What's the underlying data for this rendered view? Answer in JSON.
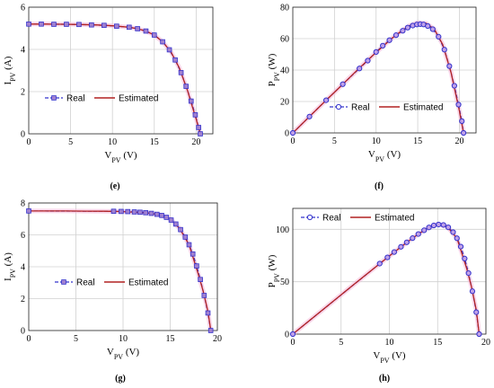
{
  "chart_data": [
    {
      "type": "line",
      "panel": "(e)",
      "xlabel": "V_PV (V)",
      "ylabel": "I_PV (A)",
      "xlim": [
        0,
        22
      ],
      "ylim": [
        0,
        6
      ],
      "xticks": [
        0,
        5,
        10,
        15,
        20
      ],
      "yticks": [
        0,
        2,
        4,
        6
      ],
      "grid": true,
      "legend": "lower-left",
      "marker": "square",
      "series": [
        {
          "name": "Real",
          "color": "#3333cc",
          "style": "dashed-marker",
          "x": [
            0,
            1.5,
            3,
            4.5,
            6,
            7.5,
            9,
            10.5,
            12,
            13,
            14,
            15,
            16,
            16.8,
            17.5,
            18.2,
            18.8,
            19.4,
            19.9,
            20.3,
            20.5
          ],
          "y": [
            5.2,
            5.2,
            5.19,
            5.19,
            5.18,
            5.16,
            5.14,
            5.1,
            5.05,
            4.98,
            4.87,
            4.68,
            4.36,
            3.98,
            3.5,
            2.9,
            2.25,
            1.55,
            0.9,
            0.3,
            0
          ]
        },
        {
          "name": "Estimated",
          "color": "#b22222",
          "style": "solid",
          "x": [
            0,
            2,
            4,
            6,
            8,
            10,
            12,
            13,
            14,
            15,
            16,
            17,
            18,
            19,
            19.5,
            20,
            20.5
          ],
          "y": [
            5.2,
            5.2,
            5.19,
            5.18,
            5.16,
            5.12,
            5.05,
            4.98,
            4.87,
            4.68,
            4.36,
            3.88,
            3.12,
            2.02,
            1.35,
            0.7,
            0
          ]
        }
      ]
    },
    {
      "type": "line",
      "panel": "(f)",
      "xlabel": "V_PV (V)",
      "ylabel": "P_PV (W)",
      "xlim": [
        0,
        22
      ],
      "ylim": [
        0,
        80
      ],
      "xticks": [
        0,
        5,
        10,
        15,
        20
      ],
      "yticks": [
        0,
        20,
        40,
        60,
        80
      ],
      "grid": true,
      "legend": "center-left",
      "marker": "circle",
      "series": [
        {
          "name": "Real",
          "color": "#3333cc",
          "style": "dashed-marker",
          "x": [
            0,
            2,
            4,
            6,
            8,
            9,
            10,
            10.8,
            11.6,
            12.4,
            13.2,
            13.8,
            14.4,
            14.9,
            15.3,
            15.7,
            16.2,
            16.8,
            17.5,
            18.2,
            18.8,
            19.4,
            19.9,
            20.3,
            20.5
          ],
          "y": [
            0,
            10.4,
            20.8,
            31,
            41,
            46,
            51.5,
            55.5,
            59,
            62.2,
            65,
            67,
            68.3,
            69,
            69.2,
            69,
            68,
            66,
            61.2,
            53,
            42.5,
            30,
            18,
            7.5,
            0
          ]
        },
        {
          "name": "Estimated",
          "color": "#b22222",
          "style": "solid",
          "x": [
            0,
            2,
            4,
            6,
            8,
            10,
            12,
            13,
            14,
            15,
            15.5,
            16,
            17,
            18,
            19,
            19.5,
            20,
            20.5
          ],
          "y": [
            0,
            10.4,
            20.8,
            31,
            41.3,
            51.2,
            60.6,
            64.7,
            68.2,
            70.2,
            70,
            69.8,
            66,
            56.2,
            38.4,
            26.3,
            14,
            0
          ]
        }
      ]
    },
    {
      "type": "line",
      "panel": "(g)",
      "xlabel": "V_PV (V)",
      "ylabel": "I_PV (A)",
      "xlim": [
        0,
        20
      ],
      "ylim": [
        0,
        8
      ],
      "xticks": [
        0,
        5,
        10,
        15,
        20
      ],
      "yticks": [
        0,
        2,
        4,
        6,
        8
      ],
      "grid": true,
      "legend": "lower-left",
      "marker": "square",
      "series": [
        {
          "name": "Real",
          "color": "#3333cc",
          "style": "dashed-marker",
          "x": [
            0,
            9,
            9.8,
            10.5,
            11.2,
            11.8,
            12.4,
            13,
            13.6,
            14.1,
            14.6,
            15.1,
            15.6,
            16.1,
            16.6,
            17,
            17.4,
            17.8,
            18.2,
            18.6,
            19,
            19.3
          ],
          "y": [
            7.5,
            7.48,
            7.47,
            7.46,
            7.44,
            7.42,
            7.39,
            7.35,
            7.29,
            7.22,
            7.1,
            6.93,
            6.68,
            6.33,
            5.86,
            5.38,
            4.8,
            4.05,
            3.2,
            2.2,
            1.1,
            0
          ]
        },
        {
          "name": "Estimated",
          "color": "#b22222",
          "style": "solid",
          "x": [
            0,
            2,
            4,
            6,
            8,
            10,
            12,
            13,
            14,
            15,
            16,
            17,
            18,
            18.5,
            19,
            19.3
          ],
          "y": [
            7.5,
            7.5,
            7.5,
            7.49,
            7.48,
            7.46,
            7.4,
            7.35,
            7.24,
            7,
            6.4,
            5.38,
            3.5,
            2.45,
            1.2,
            0
          ]
        }
      ]
    },
    {
      "type": "line",
      "panel": "(h)",
      "xlabel": "V_PV (V)",
      "ylabel": "P_PV (W)",
      "xlim": [
        0,
        20
      ],
      "ylim": [
        0,
        120
      ],
      "xticks": [
        0,
        5,
        10,
        15,
        20
      ],
      "yticks": [
        0,
        50,
        100
      ],
      "grid": true,
      "legend": "top-left",
      "marker": "circle",
      "series": [
        {
          "name": "Real",
          "color": "#3333cc",
          "style": "dashed-marker",
          "x": [
            0,
            9,
            9.8,
            10.5,
            11.2,
            11.8,
            12.4,
            13,
            13.6,
            14.1,
            14.6,
            15.1,
            15.6,
            16.1,
            16.6,
            17,
            17.4,
            17.8,
            18.2,
            18.6,
            19,
            19.3
          ],
          "y": [
            0,
            67.3,
            73.2,
            78.3,
            83.3,
            87.6,
            91.6,
            95.5,
            99.1,
            101.8,
            103.7,
            104.6,
            104.2,
            101.9,
            97.3,
            91.5,
            83.5,
            72.1,
            58.2,
            40.9,
            20.9,
            0
          ]
        },
        {
          "name": "Estimated",
          "color": "#b22222",
          "style": "solid",
          "x": [
            0,
            2,
            4,
            6,
            8,
            10,
            12,
            13,
            14,
            15,
            16,
            17,
            18,
            18.5,
            19,
            19.3
          ],
          "y": [
            0,
            15,
            30,
            45,
            59.8,
            74.6,
            88.8,
            95.5,
            101.4,
            105,
            102.4,
            91.5,
            63,
            45.3,
            22.8,
            0
          ]
        }
      ]
    }
  ]
}
